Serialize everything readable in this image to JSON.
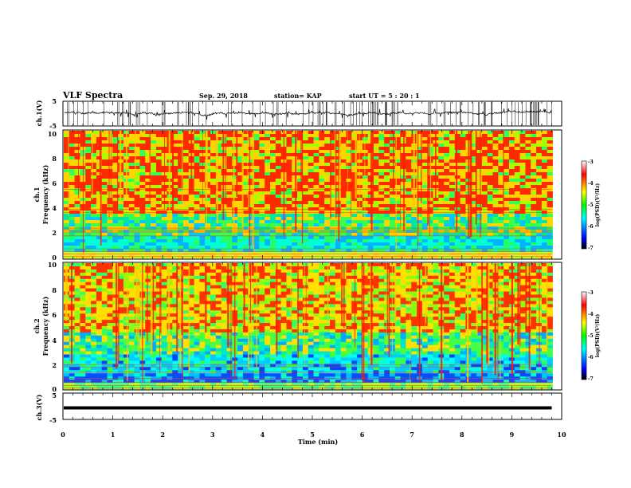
{
  "header": {
    "title": "VLF Spectra",
    "date": "Sep. 29, 2018",
    "station": "station= KAP",
    "start_ut": "start  UT =   5 : 20 : 1"
  },
  "chart_data": [
    {
      "type": "line",
      "name": "ch.1 waveform",
      "ylabel": "ch.1(V)",
      "ylim": [
        -5,
        5
      ],
      "yticks": [
        "5",
        "-5"
      ],
      "xlim": [
        0,
        10
      ],
      "data_end_min": 9.8,
      "color": "#000000"
    },
    {
      "type": "heatmap",
      "name": "ch.1 spectrogram",
      "ylabel_top": "ch.1",
      "ylabel": "Frequency  (kHz)",
      "ylim": [
        0,
        10
      ],
      "yticks": [
        "0",
        "2",
        "4",
        "6",
        "8",
        "10"
      ],
      "xlim": [
        0,
        10
      ],
      "data_end_min": 9.8,
      "colorbar": {
        "label": "log(PSD)(V²/Hz)",
        "ticks": [
          "-3",
          "-4",
          "-5",
          "-6",
          "-7"
        ],
        "range": [
          -7,
          -3
        ]
      }
    },
    {
      "type": "heatmap",
      "name": "ch.2 spectrogram",
      "ylabel_top": "ch.2",
      "ylabel": "Frequency  (kHz)",
      "ylim": [
        0,
        10
      ],
      "yticks": [
        "0",
        "2",
        "4",
        "6",
        "8",
        "10"
      ],
      "xlim": [
        0,
        10
      ],
      "data_end_min": 9.8,
      "colorbar": {
        "label": "log(PSD)(V²/Hz)",
        "ticks": [
          "-3",
          "-4",
          "-5",
          "-6",
          "-7"
        ],
        "range": [
          -7,
          -3
        ]
      }
    },
    {
      "type": "line",
      "name": "ch.3 waveform",
      "ylabel": "ch.3(V)",
      "ylim": [
        -5,
        5
      ],
      "yticks": [
        "5",
        "-5"
      ],
      "xlim": [
        0,
        10
      ],
      "constant_value": 0,
      "color": "#000000"
    }
  ],
  "xaxis": {
    "label": "Time  (min)",
    "ticks": [
      "0",
      "1",
      "2",
      "3",
      "4",
      "5",
      "6",
      "7",
      "8",
      "9",
      "10"
    ]
  },
  "colors": {
    "scale": [
      "#000000",
      "#0000ff",
      "#00ffff",
      "#00ff00",
      "#ffff00",
      "#ff0000",
      "#ffffff"
    ]
  }
}
